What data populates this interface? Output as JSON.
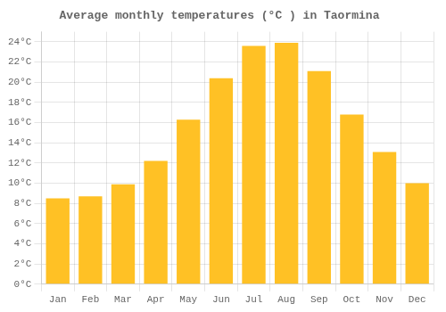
{
  "chart_data": {
    "type": "bar",
    "title": "Average monthly temperatures (°C ) in Taormina",
    "categories": [
      "Jan",
      "Feb",
      "Mar",
      "Apr",
      "May",
      "Jun",
      "Jul",
      "Aug",
      "Sep",
      "Oct",
      "Nov",
      "Dec"
    ],
    "values": [
      8.5,
      8.7,
      9.9,
      12.2,
      16.3,
      20.4,
      23.6,
      23.9,
      21.1,
      16.8,
      13.1,
      10.0
    ],
    "color": "#FFC125",
    "ylim": [
      0,
      25
    ],
    "yticks": [
      {
        "value": 0,
        "label": "0°C"
      },
      {
        "value": 2,
        "label": "2°C"
      },
      {
        "value": 4,
        "label": "4°C"
      },
      {
        "value": 6,
        "label": "6°C"
      },
      {
        "value": 8,
        "label": "8°C"
      },
      {
        "value": 10,
        "label": "10°C"
      },
      {
        "value": 12,
        "label": "12°C"
      },
      {
        "value": 14,
        "label": "14°C"
      },
      {
        "value": 16,
        "label": "16°C"
      },
      {
        "value": 18,
        "label": "18°C"
      },
      {
        "value": 20,
        "label": "20°C"
      },
      {
        "value": 22,
        "label": "22°C"
      },
      {
        "value": 24,
        "label": "24°C"
      }
    ],
    "grid": true
  }
}
